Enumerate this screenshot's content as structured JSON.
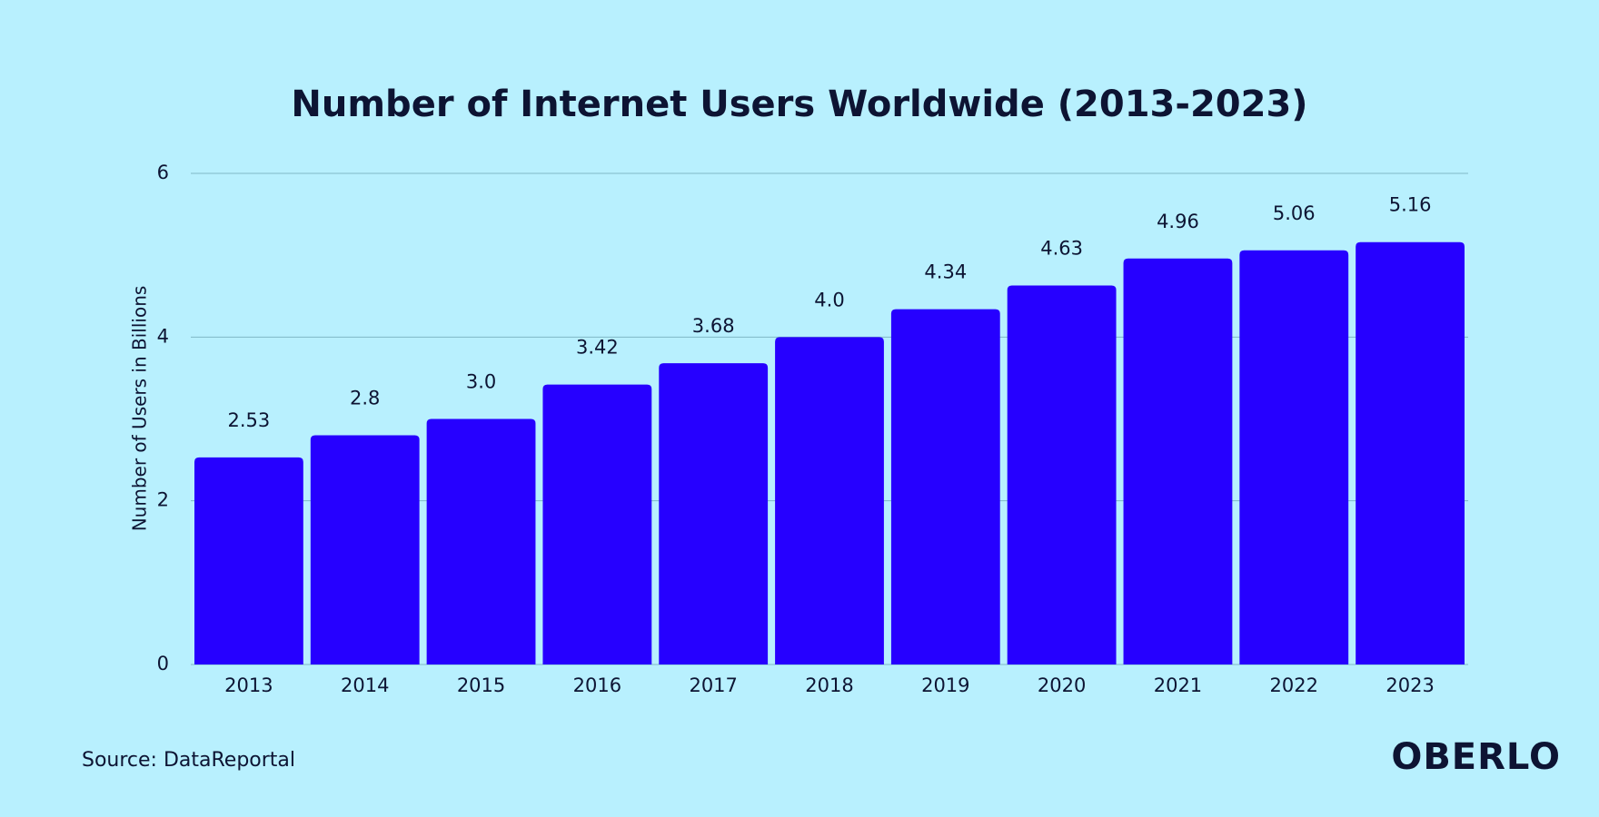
{
  "chart_data": {
    "type": "bar",
    "title": "Number of Internet Users Worldwide (2013-2023)",
    "y_label": "Number of Users in Billions",
    "categories": [
      "2013",
      "2014",
      "2015",
      "2016",
      "2017",
      "2018",
      "2019",
      "2020",
      "2021",
      "2022",
      "2023"
    ],
    "values": [
      2.53,
      2.8,
      3.0,
      3.42,
      3.68,
      4.0,
      4.34,
      4.63,
      4.96,
      5.06,
      5.16
    ],
    "value_labels": [
      "2.53",
      "2.8",
      "3.0",
      "3.42",
      "3.68",
      "4.0",
      "4.34",
      "4.63",
      "4.96",
      "5.06",
      "5.16"
    ],
    "color": "#2600ff",
    "ylim": [
      0,
      6
    ],
    "yticks": [
      0,
      2,
      4,
      6
    ],
    "grid": true,
    "source": "Source: DataReportal",
    "logo": "OBERLO"
  }
}
